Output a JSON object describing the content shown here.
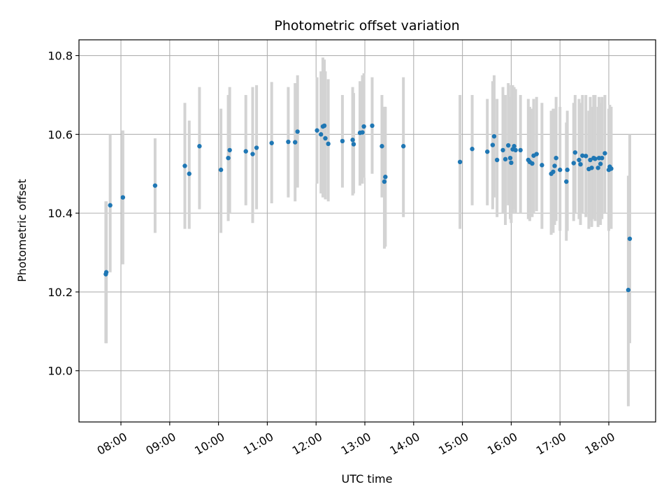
{
  "chart_data": {
    "type": "scatter",
    "title": "Photometric offset variation",
    "xlabel": "UTC time",
    "ylabel": "Photometric offset",
    "x_unit": "hours (UTC)",
    "xlim": [
      7.14,
      18.96
    ],
    "ylim": [
      9.87,
      10.84
    ],
    "grid": true,
    "x_ticks": [
      8,
      9,
      10,
      11,
      12,
      13,
      14,
      15,
      16,
      17,
      18
    ],
    "x_tick_labels": [
      "08:00",
      "09:00",
      "10:00",
      "11:00",
      "12:00",
      "13:00",
      "14:00",
      "15:00",
      "16:00",
      "17:00",
      "18:00"
    ],
    "y_ticks": [
      10.0,
      10.2,
      10.4,
      10.6,
      10.8
    ],
    "y_tick_labels": [
      "10.0",
      "10.2",
      "10.4",
      "10.6",
      "10.8"
    ],
    "colors": {
      "marker": "#1f77b4",
      "errorbar": "#d3d3d3",
      "grid": "#b0b0b0"
    },
    "points": [
      {
        "x": 7.69,
        "y": 10.245,
        "lo": 10.07,
        "hi": 10.43
      },
      {
        "x": 7.7,
        "y": 10.25,
        "lo": 10.07,
        "hi": 10.43
      },
      {
        "x": 7.78,
        "y": 10.42,
        "lo": 10.25,
        "hi": 10.6
      },
      {
        "x": 8.04,
        "y": 10.44,
        "lo": 10.27,
        "hi": 10.61
      },
      {
        "x": 8.7,
        "y": 10.47,
        "lo": 10.35,
        "hi": 10.59
      },
      {
        "x": 9.31,
        "y": 10.52,
        "lo": 10.36,
        "hi": 10.68
      },
      {
        "x": 9.4,
        "y": 10.5,
        "lo": 10.36,
        "hi": 10.635
      },
      {
        "x": 9.61,
        "y": 10.57,
        "lo": 10.41,
        "hi": 10.72
      },
      {
        "x": 10.05,
        "y": 10.51,
        "lo": 10.35,
        "hi": 10.665
      },
      {
        "x": 10.2,
        "y": 10.54,
        "lo": 10.38,
        "hi": 10.7
      },
      {
        "x": 10.23,
        "y": 10.56,
        "lo": 10.4,
        "hi": 10.72
      },
      {
        "x": 10.56,
        "y": 10.557,
        "lo": 10.42,
        "hi": 10.7
      },
      {
        "x": 10.7,
        "y": 10.55,
        "lo": 10.375,
        "hi": 10.72
      },
      {
        "x": 10.78,
        "y": 10.566,
        "lo": 10.41,
        "hi": 10.725
      },
      {
        "x": 11.09,
        "y": 10.578,
        "lo": 10.425,
        "hi": 10.733
      },
      {
        "x": 11.43,
        "y": 10.581,
        "lo": 10.44,
        "hi": 10.72
      },
      {
        "x": 11.57,
        "y": 10.58,
        "lo": 10.43,
        "hi": 10.73
      },
      {
        "x": 11.62,
        "y": 10.607,
        "lo": 10.465,
        "hi": 10.75
      },
      {
        "x": 12.02,
        "y": 10.61,
        "lo": 10.475,
        "hi": 10.745
      },
      {
        "x": 12.1,
        "y": 10.6,
        "lo": 10.45,
        "hi": 10.76
      },
      {
        "x": 12.14,
        "y": 10.62,
        "lo": 10.44,
        "hi": 10.795
      },
      {
        "x": 12.17,
        "y": 10.622,
        "lo": 10.45,
        "hi": 10.79
      },
      {
        "x": 12.19,
        "y": 10.59,
        "lo": 10.435,
        "hi": 10.76
      },
      {
        "x": 12.25,
        "y": 10.576,
        "lo": 10.43,
        "hi": 10.74
      },
      {
        "x": 12.54,
        "y": 10.583,
        "lo": 10.465,
        "hi": 10.7
      },
      {
        "x": 12.75,
        "y": 10.586,
        "lo": 10.445,
        "hi": 10.72
      },
      {
        "x": 12.77,
        "y": 10.575,
        "lo": 10.45,
        "hi": 10.705
      },
      {
        "x": 12.9,
        "y": 10.604,
        "lo": 10.47,
        "hi": 10.735
      },
      {
        "x": 12.95,
        "y": 10.605,
        "lo": 10.475,
        "hi": 10.75
      },
      {
        "x": 12.98,
        "y": 10.62,
        "lo": 10.49,
        "hi": 10.755
      },
      {
        "x": 13.15,
        "y": 10.622,
        "lo": 10.5,
        "hi": 10.745
      },
      {
        "x": 13.35,
        "y": 10.57,
        "lo": 10.44,
        "hi": 10.7
      },
      {
        "x": 13.4,
        "y": 10.48,
        "lo": 10.31,
        "hi": 10.67
      },
      {
        "x": 13.42,
        "y": 10.492,
        "lo": 10.315,
        "hi": 10.67
      },
      {
        "x": 13.79,
        "y": 10.57,
        "lo": 10.39,
        "hi": 10.745
      },
      {
        "x": 14.95,
        "y": 10.53,
        "lo": 10.36,
        "hi": 10.7
      },
      {
        "x": 15.2,
        "y": 10.563,
        "lo": 10.42,
        "hi": 10.7
      },
      {
        "x": 15.51,
        "y": 10.556,
        "lo": 10.42,
        "hi": 10.69
      },
      {
        "x": 15.62,
        "y": 10.573,
        "lo": 10.41,
        "hi": 10.735
      },
      {
        "x": 15.65,
        "y": 10.595,
        "lo": 10.44,
        "hi": 10.75
      },
      {
        "x": 15.71,
        "y": 10.535,
        "lo": 10.39,
        "hi": 10.69
      },
      {
        "x": 15.83,
        "y": 10.56,
        "lo": 10.4,
        "hi": 10.72
      },
      {
        "x": 15.88,
        "y": 10.537,
        "lo": 10.37,
        "hi": 10.7
      },
      {
        "x": 15.94,
        "y": 10.572,
        "lo": 10.42,
        "hi": 10.73
      },
      {
        "x": 15.98,
        "y": 10.54,
        "lo": 10.385,
        "hi": 10.695
      },
      {
        "x": 16.0,
        "y": 10.528,
        "lo": 10.375,
        "hi": 10.725
      },
      {
        "x": 16.03,
        "y": 10.562,
        "lo": 10.4,
        "hi": 10.725
      },
      {
        "x": 16.06,
        "y": 10.57,
        "lo": 10.41,
        "hi": 10.72
      },
      {
        "x": 16.09,
        "y": 10.56,
        "lo": 10.4,
        "hi": 10.715
      },
      {
        "x": 16.19,
        "y": 10.56,
        "lo": 10.4,
        "hi": 10.7
      },
      {
        "x": 16.35,
        "y": 10.535,
        "lo": 10.385,
        "hi": 10.69
      },
      {
        "x": 16.38,
        "y": 10.53,
        "lo": 10.38,
        "hi": 10.67
      },
      {
        "x": 16.43,
        "y": 10.526,
        "lo": 10.39,
        "hi": 10.665
      },
      {
        "x": 16.46,
        "y": 10.546,
        "lo": 10.4,
        "hi": 10.69
      },
      {
        "x": 16.52,
        "y": 10.55,
        "lo": 10.405,
        "hi": 10.695
      },
      {
        "x": 16.63,
        "y": 10.522,
        "lo": 10.36,
        "hi": 10.68
      },
      {
        "x": 16.82,
        "y": 10.5,
        "lo": 10.345,
        "hi": 10.66
      },
      {
        "x": 16.86,
        "y": 10.505,
        "lo": 10.35,
        "hi": 10.665
      },
      {
        "x": 16.89,
        "y": 10.52,
        "lo": 10.37,
        "hi": 10.665
      },
      {
        "x": 16.92,
        "y": 10.54,
        "lo": 10.38,
        "hi": 10.695
      },
      {
        "x": 17.0,
        "y": 10.51,
        "lo": 10.355,
        "hi": 10.67
      },
      {
        "x": 17.13,
        "y": 10.48,
        "lo": 10.33,
        "hi": 10.63
      },
      {
        "x": 17.15,
        "y": 10.51,
        "lo": 10.355,
        "hi": 10.66
      },
      {
        "x": 17.28,
        "y": 10.527,
        "lo": 10.38,
        "hi": 10.68
      },
      {
        "x": 17.31,
        "y": 10.554,
        "lo": 10.4,
        "hi": 10.7
      },
      {
        "x": 17.39,
        "y": 10.535,
        "lo": 10.385,
        "hi": 10.69
      },
      {
        "x": 17.42,
        "y": 10.524,
        "lo": 10.37,
        "hi": 10.68
      },
      {
        "x": 17.46,
        "y": 10.546,
        "lo": 10.4,
        "hi": 10.7
      },
      {
        "x": 17.53,
        "y": 10.545,
        "lo": 10.39,
        "hi": 10.7
      },
      {
        "x": 17.59,
        "y": 10.512,
        "lo": 10.36,
        "hi": 10.66
      },
      {
        "x": 17.62,
        "y": 10.535,
        "lo": 10.38,
        "hi": 10.695
      },
      {
        "x": 17.65,
        "y": 10.515,
        "lo": 10.365,
        "hi": 10.67
      },
      {
        "x": 17.69,
        "y": 10.54,
        "lo": 10.385,
        "hi": 10.7
      },
      {
        "x": 17.72,
        "y": 10.538,
        "lo": 10.38,
        "hi": 10.7
      },
      {
        "x": 17.78,
        "y": 10.515,
        "lo": 10.365,
        "hi": 10.67
      },
      {
        "x": 17.8,
        "y": 10.54,
        "lo": 10.39,
        "hi": 10.695
      },
      {
        "x": 17.83,
        "y": 10.525,
        "lo": 10.37,
        "hi": 10.68
      },
      {
        "x": 17.86,
        "y": 10.54,
        "lo": 10.385,
        "hi": 10.695
      },
      {
        "x": 17.92,
        "y": 10.552,
        "lo": 10.4,
        "hi": 10.7
      },
      {
        "x": 18.0,
        "y": 10.51,
        "lo": 10.355,
        "hi": 10.665
      },
      {
        "x": 18.02,
        "y": 10.518,
        "lo": 10.37,
        "hi": 10.675
      },
      {
        "x": 18.05,
        "y": 10.513,
        "lo": 10.36,
        "hi": 10.67
      },
      {
        "x": 18.4,
        "y": 10.205,
        "lo": 9.91,
        "hi": 10.495
      },
      {
        "x": 18.43,
        "y": 10.335,
        "lo": 10.07,
        "hi": 10.6
      }
    ]
  }
}
